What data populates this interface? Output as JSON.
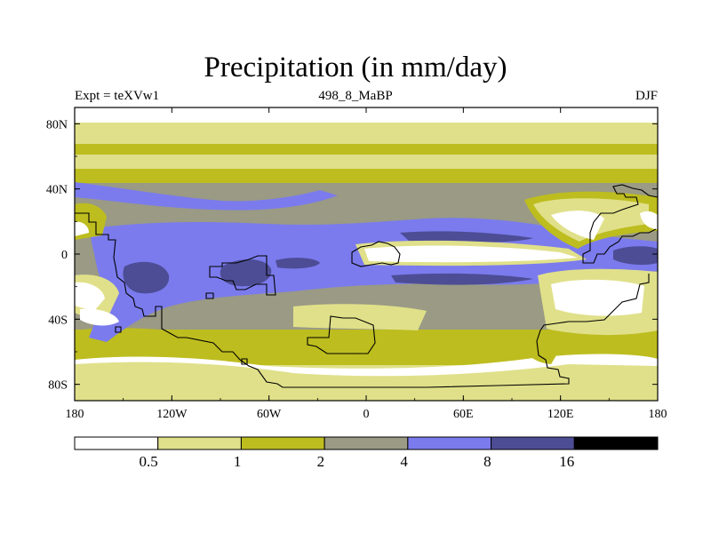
{
  "chart_data": {
    "type": "heatmap",
    "title": "Precipitation (in mm/day)",
    "left_string": "Expt = teXVw1",
    "center_string": "498_8_MaBP",
    "right_string": "DJF",
    "x_axis": {
      "range": [
        -180,
        180
      ],
      "ticks": [
        -180,
        -120,
        -60,
        0,
        60,
        120,
        180
      ],
      "tick_labels": [
        "180",
        "120W",
        "60W",
        "0",
        "60E",
        "120E",
        "180"
      ]
    },
    "y_axis": {
      "range": [
        -90,
        90
      ],
      "ticks": [
        80,
        40,
        0,
        -40,
        -80
      ],
      "tick_labels": [
        "80N",
        "40N",
        "0",
        "40S",
        "80S"
      ]
    },
    "colorbar": {
      "levels": [
        0.5,
        1,
        2,
        4,
        8,
        16
      ],
      "level_labels": [
        "0.5",
        "1",
        "2",
        "4",
        "8",
        "16"
      ],
      "colors": [
        "#ffffff",
        "#e0e08a",
        "#bdbd1f",
        "#9a9a85",
        "#7b7bee",
        "#4d4d96",
        "#000000"
      ]
    }
  }
}
